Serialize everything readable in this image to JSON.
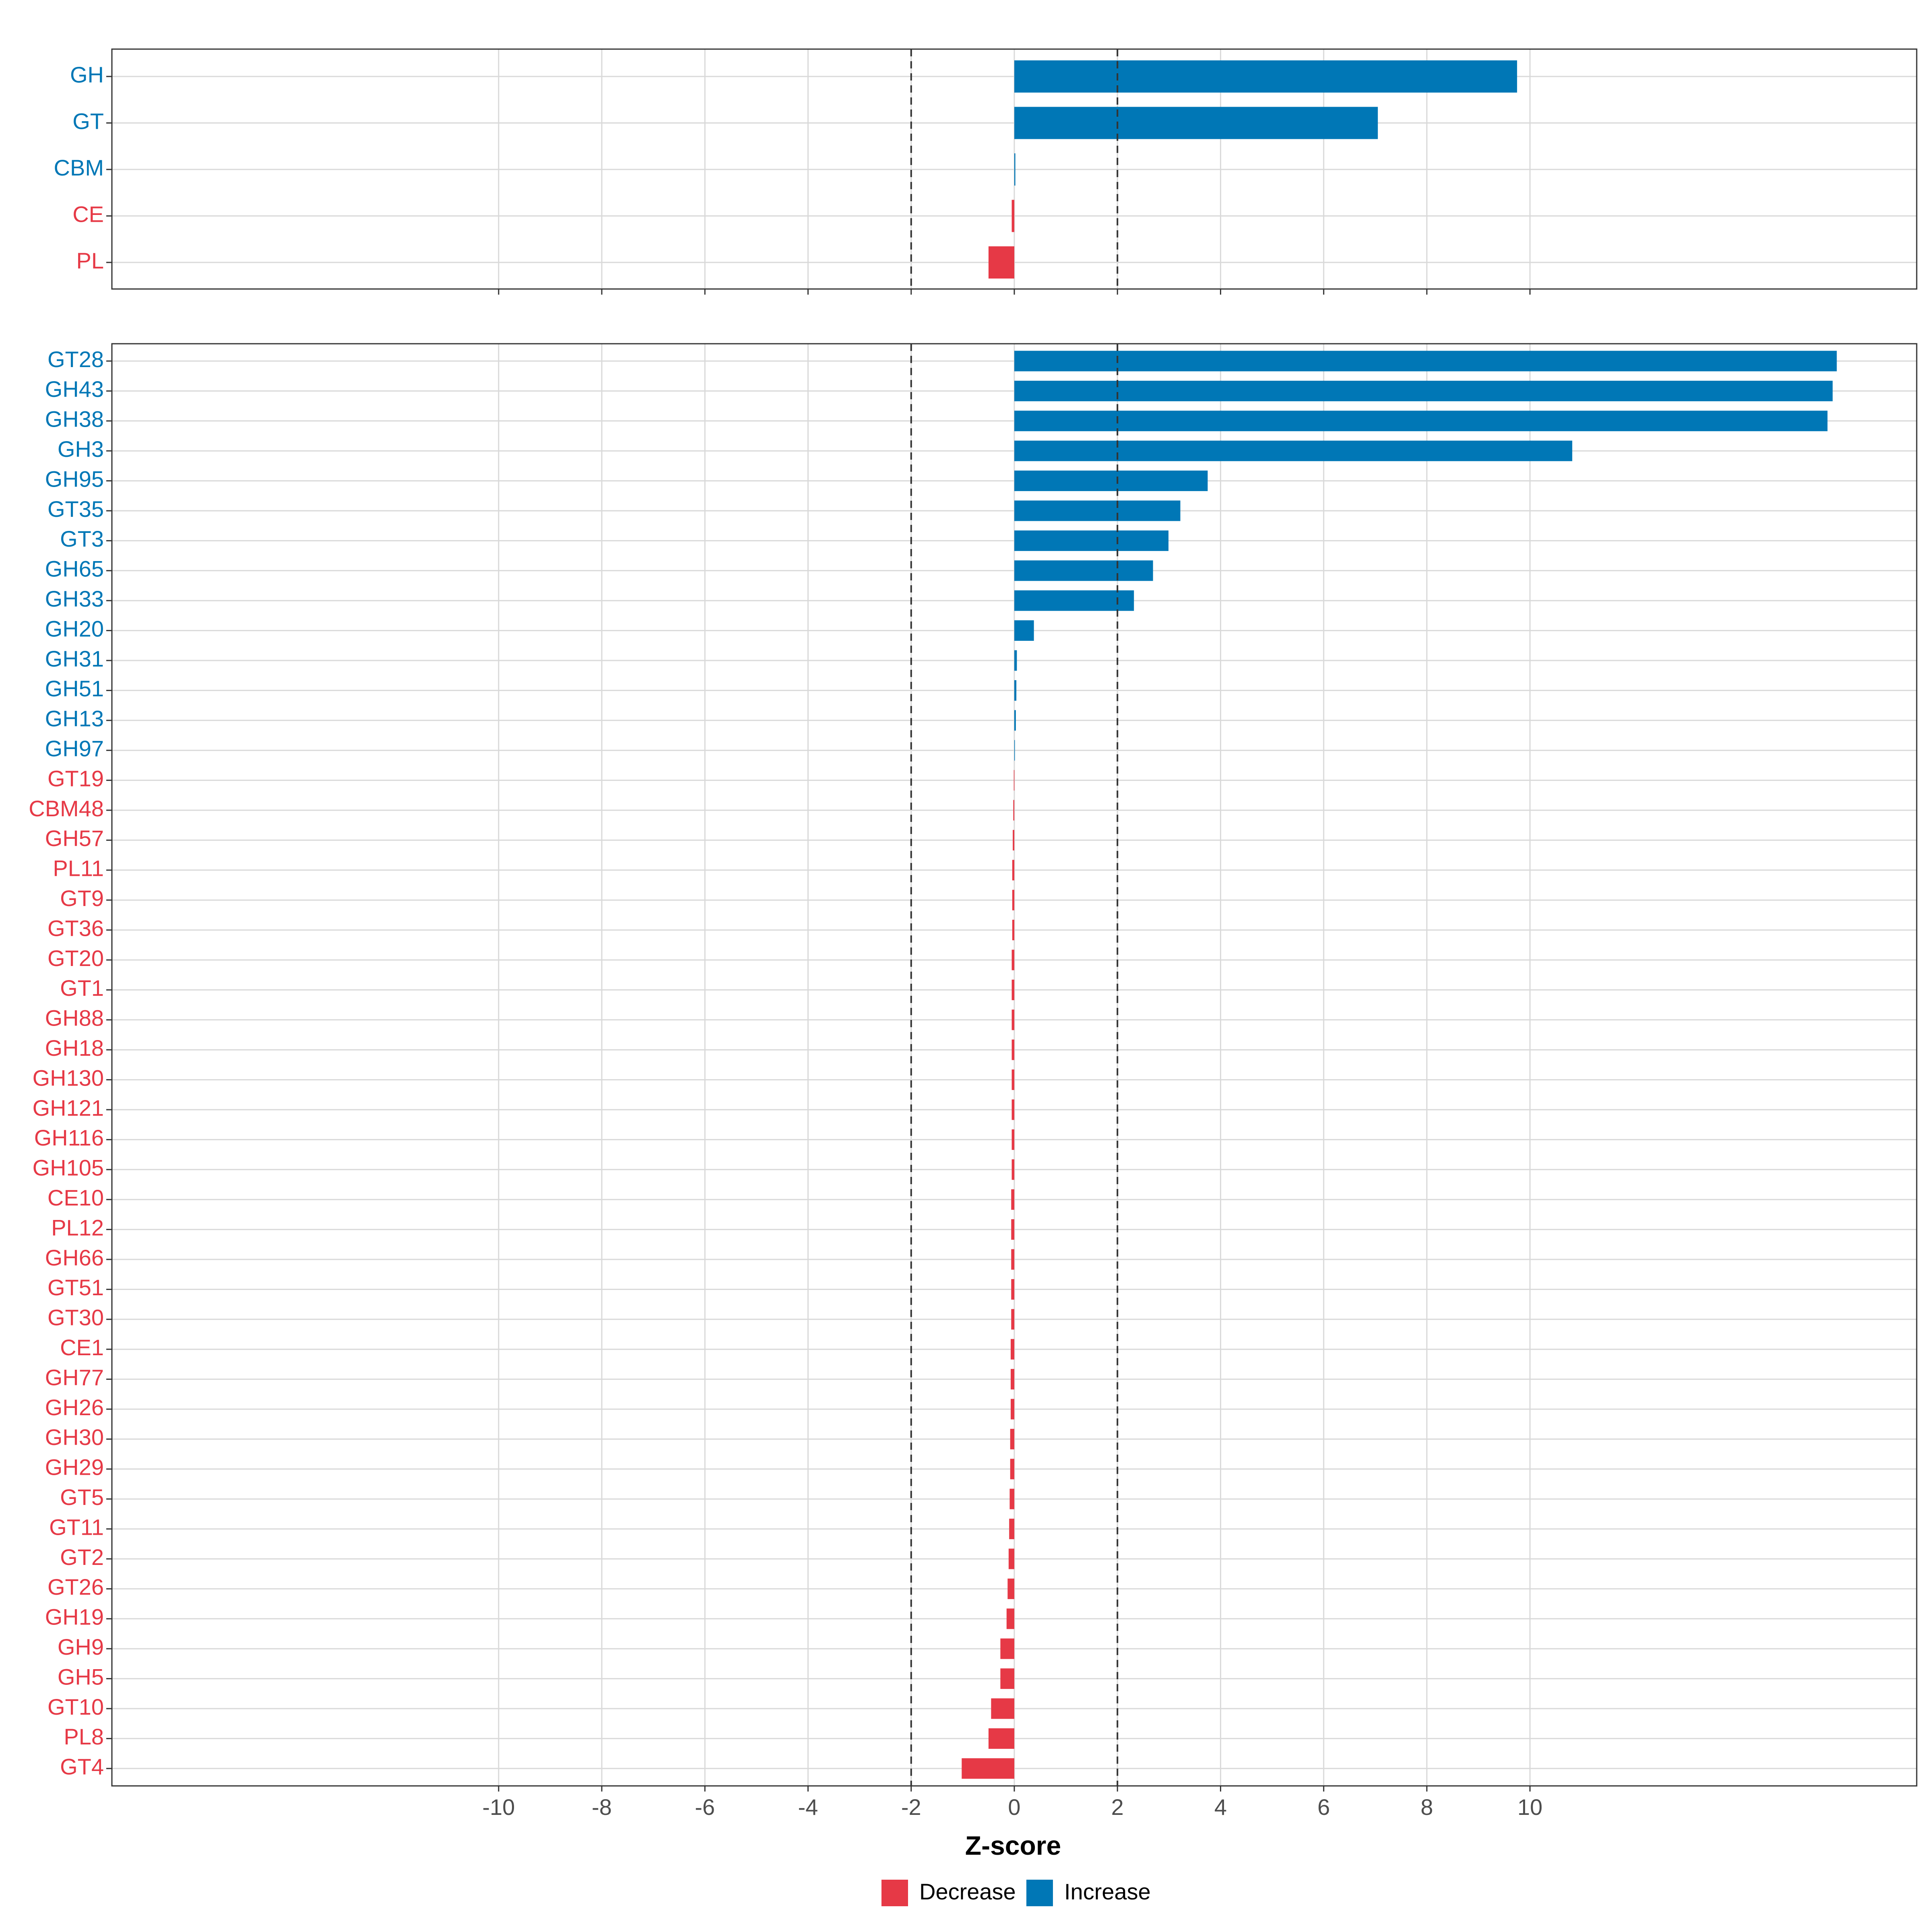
{
  "chart_data": [
    {
      "type": "bar",
      "orientation": "horizontal",
      "panel": "top",
      "categories": [
        "GH",
        "GT",
        "CBM",
        "CE",
        "PL"
      ],
      "values": [
        9.75,
        7.05,
        0.02,
        -0.05,
        -0.5
      ],
      "xlim": [
        -17.5,
        17.5
      ],
      "xlabel": "",
      "ylabel": "",
      "title": "",
      "thresholds": [
        -2,
        2
      ],
      "grid": true
    },
    {
      "type": "bar",
      "orientation": "horizontal",
      "panel": "bottom",
      "categories": [
        "GT28",
        "GH43",
        "GH38",
        "GH3",
        "GH95",
        "GT35",
        "GT3",
        "GH65",
        "GH33",
        "GH20",
        "GH31",
        "GH51",
        "GH13",
        "GH97",
        "GT19",
        "CBM48",
        "GH57",
        "PL11",
        "GT9",
        "GT36",
        "GT20",
        "GT1",
        "GH88",
        "GH18",
        "GH130",
        "GH121",
        "GH116",
        "GH105",
        "CE10",
        "PL12",
        "GH66",
        "GT51",
        "GT30",
        "CE1",
        "GH77",
        "GH26",
        "GH30",
        "GH29",
        "GT5",
        "GT11",
        "GT2",
        "GT26",
        "GH19",
        "GH9",
        "GH5",
        "GT10",
        "PL8",
        "GT4"
      ],
      "values": [
        15.95,
        15.87,
        15.77,
        10.82,
        3.75,
        3.22,
        2.99,
        2.69,
        2.32,
        0.38,
        0.05,
        0.04,
        0.03,
        0.01,
        -0.01,
        -0.02,
        -0.03,
        -0.04,
        -0.04,
        -0.04,
        -0.05,
        -0.05,
        -0.05,
        -0.05,
        -0.05,
        -0.05,
        -0.05,
        -0.05,
        -0.06,
        -0.06,
        -0.06,
        -0.06,
        -0.06,
        -0.07,
        -0.07,
        -0.07,
        -0.08,
        -0.08,
        -0.09,
        -0.1,
        -0.11,
        -0.13,
        -0.15,
        -0.27,
        -0.27,
        -0.45,
        -0.5,
        -1.02
      ],
      "xlim": [
        -17.5,
        17.5
      ],
      "xticks": [
        -10,
        -8,
        -6,
        -4,
        -2,
        0,
        2,
        4,
        6,
        8,
        10
      ],
      "xlabel": "Z-score",
      "ylabel": "",
      "title": "",
      "thresholds": [
        -2,
        2
      ],
      "grid": true
    }
  ],
  "legend": {
    "placement": "bottom",
    "items": [
      {
        "label": "Decrease",
        "color": "#e63946"
      },
      {
        "label": "Increase",
        "color": "#0077b6"
      }
    ]
  },
  "colors": {
    "increase": "#0077b6",
    "decrease": "#e63946",
    "grid": "#d9d9d9",
    "threshold": "#333333",
    "tick_text": "#4d4d4d"
  }
}
